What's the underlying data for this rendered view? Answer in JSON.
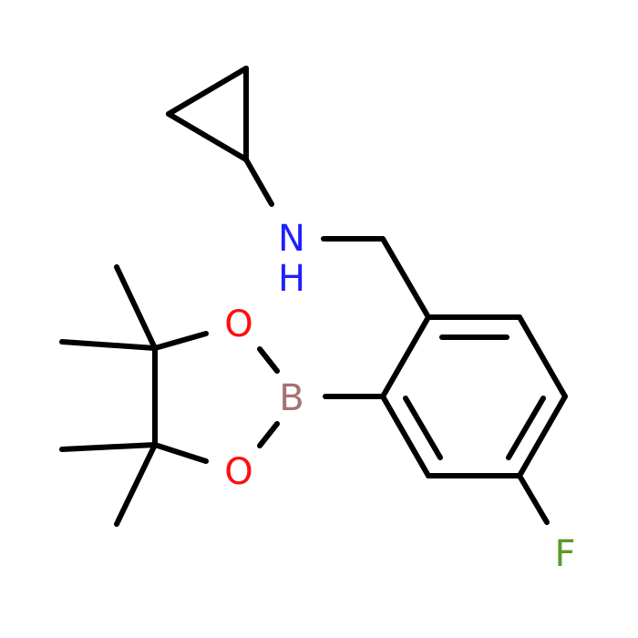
{
  "nodes": [
    {
      "label": "N"
    },
    {
      "label": "H"
    },
    {
      "label": "O"
    },
    {
      "label": "O"
    },
    {
      "label": "B"
    },
    {
      "label": "F"
    }
  ]
}
